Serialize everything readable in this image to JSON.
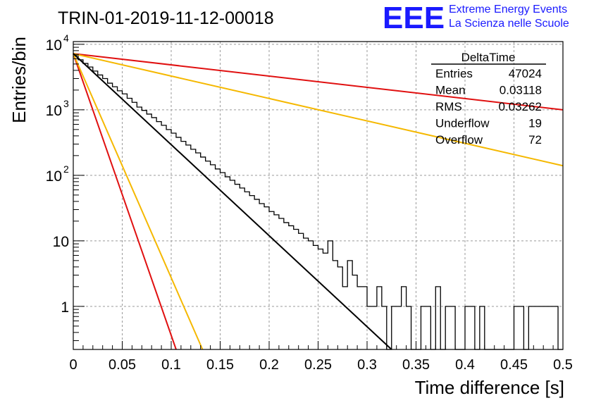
{
  "chart_data": {
    "type": "histogram",
    "title": "TRIN-01-2019-11-12-00018",
    "xlabel": "Time difference [s]",
    "ylabel": "Entries/bin",
    "xlim": [
      0,
      0.5
    ],
    "ylim": [
      0.22,
      11000
    ],
    "yscale": "log",
    "grid": true,
    "x_ticks": [
      "0",
      "0.05",
      "0.1",
      "0.15",
      "0.2",
      "0.25",
      "0.3",
      "0.35",
      "0.4",
      "0.45",
      "0.5"
    ],
    "x_tick_values": [
      0,
      0.05,
      0.1,
      0.15,
      0.2,
      0.25,
      0.3,
      0.35,
      0.4,
      0.45,
      0.5
    ],
    "y_ticks": [
      {
        "value": 10000,
        "base": "10",
        "exp": "4"
      },
      {
        "value": 1000,
        "base": "10",
        "exp": "3"
      },
      {
        "value": 100,
        "base": "10",
        "exp": "2"
      },
      {
        "value": 10,
        "base": "10",
        "exp": ""
      },
      {
        "value": 1,
        "base": "1",
        "exp": ""
      }
    ],
    "logo": {
      "text": "EEE",
      "line1": "Extreme Energy Events",
      "line2": "La Scienza nelle Scuole",
      "color": "#1a1aff"
    },
    "stats": {
      "name": "DeltaTime",
      "rows": [
        {
          "label": "Entries",
          "value": "47024"
        },
        {
          "label": "Mean",
          "value": "0.03118"
        },
        {
          "label": "RMS",
          "value": "0.03262"
        },
        {
          "label": "Underflow",
          "value": "19"
        },
        {
          "label": "Overflow",
          "value": "72"
        }
      ]
    },
    "histogram": {
      "bin_width": 0.005,
      "x_start": 0,
      "counts": [
        6800,
        5800,
        5100,
        4500,
        3900,
        3400,
        3000,
        2550,
        2250,
        1950,
        1750,
        1500,
        1300,
        1100,
        980,
        860,
        760,
        660,
        580,
        500,
        440,
        380,
        330,
        290,
        250,
        220,
        190,
        165,
        145,
        125,
        110,
        95,
        84,
        73,
        64,
        56,
        49,
        43,
        37,
        33,
        28,
        25,
        22,
        19,
        17,
        15,
        13,
        11,
        10,
        8.5,
        7.5,
        6.5,
        10,
        5,
        4,
        2,
        5,
        3,
        2,
        2,
        1,
        1,
        2,
        1,
        0,
        1,
        1,
        2,
        1,
        0,
        0,
        1,
        1,
        0,
        2,
        0,
        1,
        1,
        0,
        0,
        1,
        1,
        0,
        1,
        0,
        0,
        0,
        0,
        0,
        0,
        1,
        1,
        0,
        1,
        1,
        1,
        1,
        1,
        1,
        0
      ],
      "color": "#000000"
    },
    "series": [
      {
        "values": [
          [
            0,
            7200
          ],
          [
            0.5,
            1000
          ]
        ],
        "color": "#e01010"
      },
      {
        "values": [
          [
            0,
            7200
          ],
          [
            0.5,
            140
          ]
        ],
        "color": "#f5b800"
      },
      {
        "values": [
          [
            0,
            7200
          ],
          [
            0.105,
            0.22
          ]
        ],
        "color": "#e01010"
      },
      {
        "values": [
          [
            0,
            7200
          ],
          [
            0.132,
            0.22
          ]
        ],
        "color": "#f5b800"
      },
      {
        "values": [
          [
            0,
            7200
          ],
          [
            0.325,
            0.22
          ]
        ],
        "color": "#000000"
      }
    ]
  }
}
